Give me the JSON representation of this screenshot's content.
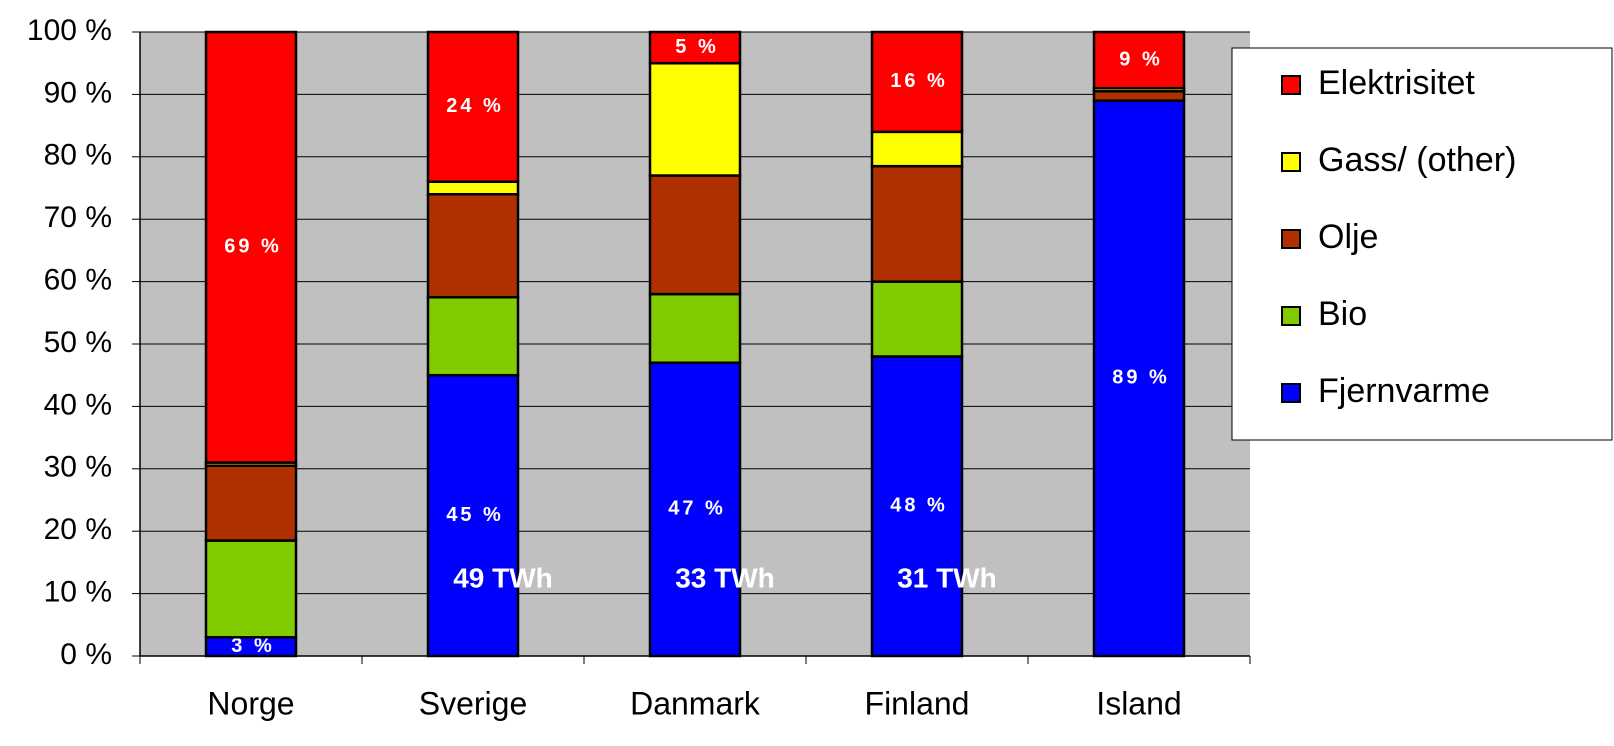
{
  "chart_data": {
    "type": "stacked_bar",
    "categories": [
      "Norge",
      "Sverige",
      "Danmark",
      "Finland",
      "Island"
    ],
    "series": [
      {
        "name": "Fjernvarme",
        "color": "#0000ff",
        "values": [
          3,
          45,
          47,
          48,
          89
        ],
        "value_labels": [
          "3 %",
          "45 %",
          "47 %",
          "48 %",
          "89 %"
        ]
      },
      {
        "name": "Bio",
        "color": "#80cc00",
        "values": [
          15.5,
          12.5,
          11,
          12,
          0
        ]
      },
      {
        "name": "Olje",
        "color": "#b03000",
        "values": [
          12,
          16.5,
          19,
          18.5,
          1.5
        ]
      },
      {
        "name": "Gass/ (other)",
        "color": "#ffff00",
        "values": [
          0.5,
          2,
          18,
          5.5,
          0.5
        ]
      },
      {
        "name": "Elektrisitet",
        "color": "#ff0000",
        "values": [
          69,
          24,
          5,
          16,
          9
        ],
        "value_labels": [
          "69 %",
          "24 %",
          "5 %",
          "16 %",
          "9 %"
        ]
      }
    ],
    "total_labels": [
      null,
      "49 TWh",
      "33 TWh",
      "31 TWh",
      null
    ],
    "ylim": [
      0,
      100
    ],
    "yticks": [
      {
        "value": 0,
        "label": "0 %"
      },
      {
        "value": 10,
        "label": "10 %"
      },
      {
        "value": 20,
        "label": "20 %"
      },
      {
        "value": 30,
        "label": "30 %"
      },
      {
        "value": 40,
        "label": "40 %"
      },
      {
        "value": 50,
        "label": "50 %"
      },
      {
        "value": 60,
        "label": "60 %"
      },
      {
        "value": 70,
        "label": "70 %"
      },
      {
        "value": 80,
        "label": "80 %"
      },
      {
        "value": 90,
        "label": "90 %"
      },
      {
        "value": 100,
        "label": "100 %"
      }
    ],
    "grid": true,
    "legend": "right"
  }
}
